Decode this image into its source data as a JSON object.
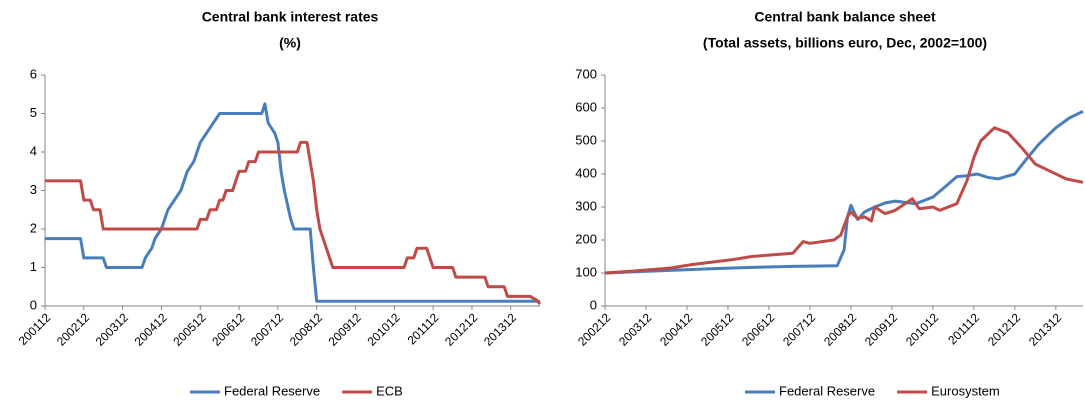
{
  "chart_data": [
    {
      "type": "line",
      "title": [
        "Central bank interest rates",
        "(%)"
      ],
      "xlim": [
        2001.917,
        2014.67
      ],
      "ylim": [
        0,
        6
      ],
      "yticks": [
        0,
        1,
        2,
        3,
        4,
        5,
        6
      ],
      "xticks": [
        {
          "value": 2001.917,
          "label": "200112"
        },
        {
          "value": 2002.917,
          "label": "200212"
        },
        {
          "value": 2003.917,
          "label": "200312"
        },
        {
          "value": 2004.917,
          "label": "200412"
        },
        {
          "value": 2005.917,
          "label": "200512"
        },
        {
          "value": 2006.917,
          "label": "200612"
        },
        {
          "value": 2007.917,
          "label": "200712"
        },
        {
          "value": 2008.917,
          "label": "200812"
        },
        {
          "value": 2009.917,
          "label": "200912"
        },
        {
          "value": 2010.917,
          "label": "201012"
        },
        {
          "value": 2011.917,
          "label": "201112"
        },
        {
          "value": 2012.917,
          "label": "201212"
        },
        {
          "value": 2013.917,
          "label": "201312"
        }
      ],
      "legend": "bottom",
      "series": [
        {
          "name": "Federal Reserve",
          "color": "#4a7ebb",
          "x": [
            2001.917,
            2002.833,
            2002.917,
            2003.417,
            2003.5,
            2004.417,
            2004.5,
            2004.667,
            2004.75,
            2004.917,
            2005.083,
            2005.25,
            2005.417,
            2005.583,
            2005.75,
            2005.917,
            2006.083,
            2006.25,
            2006.417,
            2007.5,
            2007.583,
            2007.667,
            2007.833,
            2007.917,
            2008.0,
            2008.083,
            2008.25,
            2008.333,
            2008.75,
            2008.833,
            2008.917,
            2014.67
          ],
          "values": [
            1.75,
            1.75,
            1.25,
            1.25,
            1.0,
            1.0,
            1.25,
            1.5,
            1.75,
            2.0,
            2.5,
            2.75,
            3.0,
            3.5,
            3.75,
            4.25,
            4.5,
            4.75,
            5.0,
            5.0,
            5.25,
            4.75,
            4.5,
            4.25,
            3.5,
            3.0,
            2.25,
            2.0,
            2.0,
            1.0,
            0.125,
            0.125
          ]
        },
        {
          "name": "ECB",
          "color": "#be4b48",
          "x": [
            2001.917,
            2002.833,
            2002.917,
            2003.083,
            2003.167,
            2003.333,
            2003.417,
            2005.833,
            2005.917,
            2006.083,
            2006.167,
            2006.333,
            2006.417,
            2006.5,
            2006.583,
            2006.75,
            2006.833,
            2006.917,
            2007.083,
            2007.167,
            2007.333,
            2007.417,
            2008.417,
            2008.5,
            2008.667,
            2008.75,
            2008.833,
            2008.917,
            2009.0,
            2009.167,
            2009.25,
            2009.333,
            2011.167,
            2011.25,
            2011.417,
            2011.5,
            2011.75,
            2011.833,
            2011.917,
            2012.417,
            2012.5,
            2013.25,
            2013.333,
            2013.75,
            2013.833,
            2014.333,
            2014.417,
            2014.583,
            2014.67
          ],
          "values": [
            3.25,
            3.25,
            2.75,
            2.75,
            2.5,
            2.5,
            2.0,
            2.0,
            2.25,
            2.25,
            2.5,
            2.5,
            2.75,
            2.75,
            3.0,
            3.0,
            3.25,
            3.5,
            3.5,
            3.75,
            3.75,
            4.0,
            4.0,
            4.25,
            4.25,
            3.75,
            3.25,
            2.5,
            2.0,
            1.5,
            1.25,
            1.0,
            1.0,
            1.25,
            1.25,
            1.5,
            1.5,
            1.25,
            1.0,
            1.0,
            0.75,
            0.75,
            0.5,
            0.5,
            0.25,
            0.25,
            0.25,
            0.15,
            0.05
          ]
        }
      ]
    },
    {
      "type": "line",
      "title": [
        "Central bank balance sheet",
        "(Total assets, billions euro, Dec, 2002=100)"
      ],
      "xlim": [
        2002.917,
        2014.58
      ],
      "ylim": [
        0,
        700
      ],
      "yticks": [
        0,
        100,
        200,
        300,
        400,
        500,
        600,
        700
      ],
      "xticks": [
        {
          "value": 2002.917,
          "label": "200212"
        },
        {
          "value": 2003.917,
          "label": "200312"
        },
        {
          "value": 2004.917,
          "label": "200412"
        },
        {
          "value": 2005.917,
          "label": "200512"
        },
        {
          "value": 2006.917,
          "label": "200612"
        },
        {
          "value": 2007.917,
          "label": "200712"
        },
        {
          "value": 2008.917,
          "label": "200812"
        },
        {
          "value": 2009.917,
          "label": "200912"
        },
        {
          "value": 2010.917,
          "label": "201012"
        },
        {
          "value": 2011.917,
          "label": "201112"
        },
        {
          "value": 2012.917,
          "label": "201212"
        },
        {
          "value": 2013.917,
          "label": "201312"
        }
      ],
      "legend": "bottom",
      "series": [
        {
          "name": "Federal Reserve",
          "color": "#4a7ebb",
          "x": [
            2002.917,
            2003.5,
            2004.5,
            2005.5,
            2006.5,
            2007.5,
            2008.583,
            2008.75,
            2008.833,
            2008.917,
            2009.083,
            2009.25,
            2009.5,
            2009.75,
            2010.0,
            2010.5,
            2010.917,
            2011.25,
            2011.5,
            2011.75,
            2012.0,
            2012.25,
            2012.5,
            2012.917,
            2013.167,
            2013.5,
            2013.917,
            2014.25,
            2014.58
          ],
          "values": [
            100,
            103,
            108,
            113,
            117,
            120,
            122,
            170,
            270,
            305,
            262,
            285,
            300,
            312,
            318,
            310,
            330,
            365,
            392,
            395,
            400,
            390,
            385,
            400,
            440,
            490,
            540,
            570,
            590
          ]
        },
        {
          "name": "Eurosystem",
          "color": "#be4b48",
          "x": [
            2002.917,
            2003.5,
            2004.5,
            2005.0,
            2006.0,
            2006.5,
            2007.5,
            2007.75,
            2007.917,
            2008.5,
            2008.667,
            2008.833,
            2008.917,
            2009.083,
            2009.25,
            2009.417,
            2009.5,
            2009.75,
            2010.0,
            2010.417,
            2010.583,
            2010.917,
            2011.083,
            2011.5,
            2011.75,
            2011.917,
            2012.083,
            2012.417,
            2012.75,
            2013.083,
            2013.417,
            2013.75,
            2014.167,
            2014.58
          ],
          "values": [
            100,
            105,
            115,
            125,
            140,
            150,
            160,
            195,
            190,
            200,
            215,
            270,
            285,
            265,
            270,
            258,
            300,
            280,
            290,
            325,
            295,
            300,
            290,
            310,
            380,
            450,
            500,
            540,
            525,
            480,
            430,
            410,
            385,
            375
          ]
        }
      ]
    }
  ]
}
